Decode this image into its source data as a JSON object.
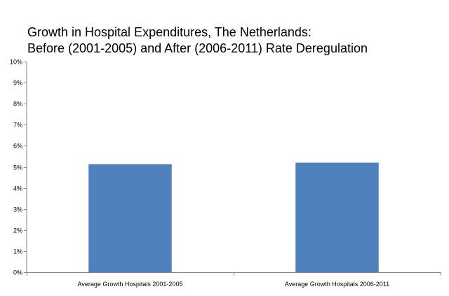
{
  "chart_data": {
    "type": "bar",
    "title_lines": [
      "Growth in Hospital Expenditures, The Netherlands:",
      "Before (2001-2005) and After (2006-2011) Rate Deregulation"
    ],
    "categories": [
      "Average Growth Hospitals 2001-2005",
      "Average Growth Hospitals 2006-2011"
    ],
    "values": [
      5.12,
      5.19
    ],
    "ylim": [
      0,
      10
    ],
    "yticks": [
      0,
      1,
      2,
      3,
      4,
      5,
      6,
      7,
      8,
      9,
      10
    ],
    "ytick_labels": [
      "0%",
      "1%",
      "2%",
      "3%",
      "4%",
      "5%",
      "6%",
      "7%",
      "8%",
      "9%",
      "10%"
    ],
    "xlabel": "",
    "ylabel": "",
    "grid": false,
    "legend": "none",
    "bar_color": "#4F81BD"
  }
}
